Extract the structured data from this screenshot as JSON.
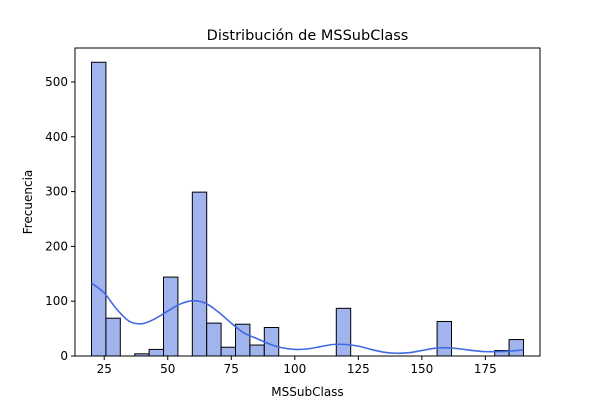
{
  "chart_data": {
    "type": "bar",
    "title": "Distribución de MSSubClass",
    "xlabel": "MSSubClass",
    "ylabel": "Frecuencia",
    "xlim": [
      13.5,
      196.5
    ],
    "ylim": [
      0,
      562
    ],
    "xticks": [
      25,
      50,
      75,
      100,
      125,
      150,
      175
    ],
    "yticks": [
      0,
      100,
      200,
      300,
      400,
      500
    ],
    "grid": false,
    "legend": "none",
    "bar_color": "#a1b4ee",
    "bar_edge_color": "#000000",
    "kde_color": "#4169e1",
    "bins": [
      {
        "x0": 20.0,
        "x1": 25.67,
        "count": 536
      },
      {
        "x0": 25.67,
        "x1": 31.33,
        "count": 69
      },
      {
        "x0": 37.0,
        "x1": 42.67,
        "count": 4
      },
      {
        "x0": 42.67,
        "x1": 48.33,
        "count": 12
      },
      {
        "x0": 48.33,
        "x1": 54.0,
        "count": 144
      },
      {
        "x0": 59.67,
        "x1": 65.33,
        "count": 299
      },
      {
        "x0": 65.33,
        "x1": 71.0,
        "count": 60
      },
      {
        "x0": 71.0,
        "x1": 76.67,
        "count": 16
      },
      {
        "x0": 76.67,
        "x1": 82.33,
        "count": 58
      },
      {
        "x0": 82.33,
        "x1": 88.0,
        "count": 20
      },
      {
        "x0": 88.0,
        "x1": 93.67,
        "count": 52
      },
      {
        "x0": 116.33,
        "x1": 122.0,
        "count": 87
      },
      {
        "x0": 156.0,
        "x1": 161.67,
        "count": 63
      },
      {
        "x0": 178.67,
        "x1": 184.33,
        "count": 10
      },
      {
        "x0": 184.33,
        "x1": 190.0,
        "count": 30
      }
    ],
    "kde_curve": {
      "x": [
        20,
        25,
        30,
        35,
        40,
        45,
        50,
        55,
        60,
        65,
        70,
        75,
        80,
        85,
        90,
        95,
        100,
        105,
        110,
        115,
        120,
        125,
        130,
        135,
        140,
        145,
        150,
        155,
        160,
        165,
        170,
        175,
        180,
        185,
        190
      ],
      "y": [
        133,
        115,
        85,
        63,
        59,
        68,
        82,
        95,
        101,
        96,
        80,
        60,
        42,
        32,
        22,
        15,
        12,
        13,
        17,
        21,
        21,
        18,
        12,
        7,
        5,
        6,
        10,
        14,
        15,
        13,
        10,
        8,
        8,
        9,
        11
      ]
    }
  }
}
